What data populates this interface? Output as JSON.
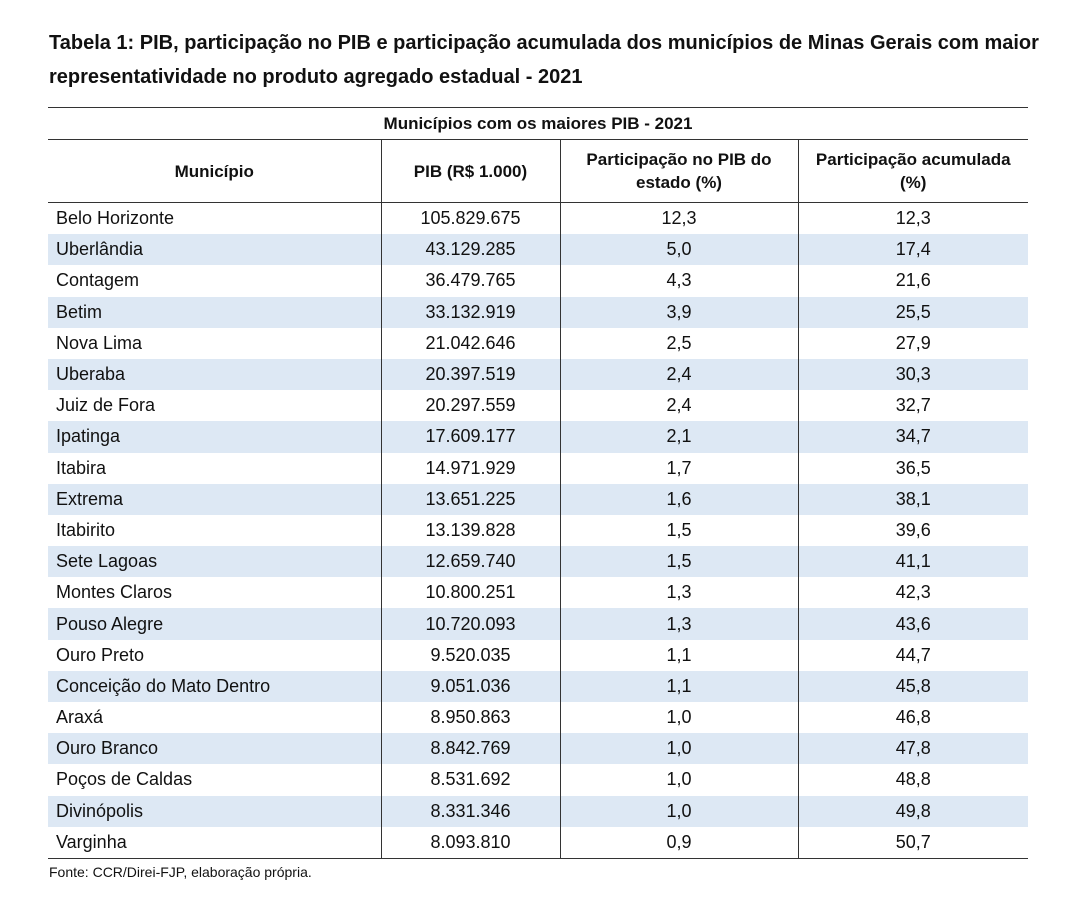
{
  "title": "Tabela 1: PIB, participação no PIB e participação acumulada dos municípios de Minas Gerais com maior representatividade no produto agregado estadual - 2021",
  "table": {
    "group_header": "Municípios com os maiores PIB - 2021",
    "columns": [
      "Município",
      "PIB (R$ 1.000)",
      "Participação no PIB do estado (%)",
      "Participação acumulada (%)"
    ],
    "rows": [
      [
        "Belo Horizonte",
        "105.829.675",
        "12,3",
        "12,3"
      ],
      [
        "Uberlândia",
        "43.129.285",
        "5,0",
        "17,4"
      ],
      [
        "Contagem",
        "36.479.765",
        "4,3",
        "21,6"
      ],
      [
        "Betim",
        "33.132.919",
        "3,9",
        "25,5"
      ],
      [
        "Nova Lima",
        "21.042.646",
        "2,5",
        "27,9"
      ],
      [
        "Uberaba",
        "20.397.519",
        "2,4",
        "30,3"
      ],
      [
        "Juiz de Fora",
        "20.297.559",
        "2,4",
        "32,7"
      ],
      [
        "Ipatinga",
        "17.609.177",
        "2,1",
        "34,7"
      ],
      [
        "Itabira",
        "14.971.929",
        "1,7",
        "36,5"
      ],
      [
        "Extrema",
        "13.651.225",
        "1,6",
        "38,1"
      ],
      [
        "Itabirito",
        "13.139.828",
        "1,5",
        "39,6"
      ],
      [
        "Sete Lagoas",
        "12.659.740",
        "1,5",
        "41,1"
      ],
      [
        "Montes Claros",
        "10.800.251",
        "1,3",
        "42,3"
      ],
      [
        "Pouso Alegre",
        "10.720.093",
        "1,3",
        "43,6"
      ],
      [
        "Ouro Preto",
        "9.520.035",
        "1,1",
        "44,7"
      ],
      [
        "Conceição do Mato Dentro",
        "9.051.036",
        "1,1",
        "45,8"
      ],
      [
        "Araxá",
        "8.950.863",
        "1,0",
        "46,8"
      ],
      [
        "Ouro Branco",
        "8.842.769",
        "1,0",
        "47,8"
      ],
      [
        "Poços de Caldas",
        "8.531.692",
        "1,0",
        "48,8"
      ],
      [
        "Divinópolis",
        "8.331.346",
        "1,0",
        "49,8"
      ],
      [
        "Varginha",
        "8.093.810",
        "0,9",
        "50,7"
      ]
    ]
  },
  "source": "Fonte: CCR/Direi-FJP, elaboração própria.",
  "colors": {
    "row_shade": "#dde8f4",
    "rule": "#333333",
    "text": "#111111"
  }
}
